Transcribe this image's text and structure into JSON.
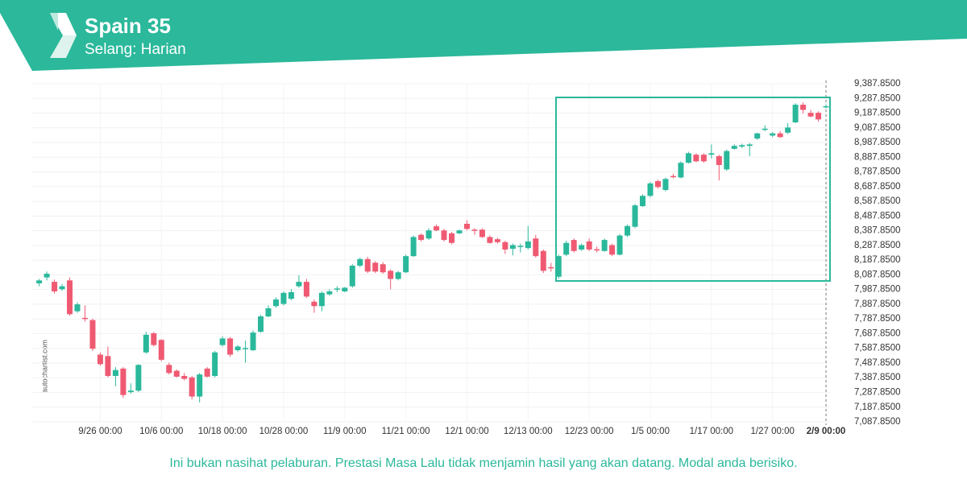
{
  "chart_data": {
    "type": "candlestick",
    "title": "Spain 35",
    "subtitle": "Selang: Harian",
    "source": "autochartist.com",
    "up_color": "#2ab89b",
    "down_color": "#ef5a72",
    "grid": true,
    "ylim": [
      7087.85,
      9387.85
    ],
    "yticks": [
      {
        "value": 7087.85,
        "label": "7,087.8500"
      },
      {
        "value": 7187.85,
        "label": "7,187.8500"
      },
      {
        "value": 7287.85,
        "label": "7,287.8500"
      },
      {
        "value": 7387.85,
        "label": "7,387.8500"
      },
      {
        "value": 7487.85,
        "label": "7,487.8500"
      },
      {
        "value": 7587.85,
        "label": "7,587.8500"
      },
      {
        "value": 7687.85,
        "label": "7,687.8500"
      },
      {
        "value": 7787.85,
        "label": "7,787.8500"
      },
      {
        "value": 7887.85,
        "label": "7,887.8500"
      },
      {
        "value": 7987.85,
        "label": "7,987.8500"
      },
      {
        "value": 8087.85,
        "label": "8,087.8500"
      },
      {
        "value": 8187.85,
        "label": "8,187.8500"
      },
      {
        "value": 8287.85,
        "label": "8,287.8500"
      },
      {
        "value": 8387.85,
        "label": "8,387.8500"
      },
      {
        "value": 8487.85,
        "label": "8,487.8500"
      },
      {
        "value": 8587.85,
        "label": "8,587.8500"
      },
      {
        "value": 8687.85,
        "label": "8,687.8500"
      },
      {
        "value": 8787.85,
        "label": "8,787.8500"
      },
      {
        "value": 8887.85,
        "label": "8,887.8500"
      },
      {
        "value": 8987.85,
        "label": "8,987.8500"
      },
      {
        "value": 9087.85,
        "label": "9,087.8500"
      },
      {
        "value": 9187.85,
        "label": "9,187.8500"
      },
      {
        "value": 9287.85,
        "label": "9,287.8500"
      },
      {
        "value": 9387.85,
        "label": "9,387.8500"
      }
    ],
    "categories": [
      null,
      null,
      null,
      null,
      null,
      null,
      null,
      null,
      "9/26 00:00",
      null,
      null,
      null,
      null,
      null,
      null,
      null,
      "10/6 00:00",
      null,
      null,
      null,
      null,
      null,
      null,
      null,
      "10/18 00:00",
      null,
      null,
      null,
      null,
      null,
      null,
      null,
      "10/28 00:00",
      null,
      null,
      null,
      null,
      null,
      null,
      null,
      "11/9 00:00",
      null,
      null,
      null,
      null,
      null,
      null,
      null,
      "11/21 00:00",
      null,
      null,
      null,
      null,
      null,
      null,
      null,
      "12/1 00:00",
      null,
      null,
      null,
      null,
      null,
      null,
      null,
      "12/13 00:00",
      null,
      null,
      null,
      null,
      null,
      null,
      null,
      "12/23 00:00",
      null,
      null,
      null,
      null,
      null,
      null,
      null,
      "1/5 00:00",
      null,
      null,
      null,
      null,
      null,
      null,
      null,
      "1/17 00:00",
      null,
      null,
      null,
      null,
      null,
      null,
      null,
      "1/27 00:00",
      null,
      null,
      null,
      null,
      null,
      null,
      "2/9 00:00"
    ],
    "series": [
      {
        "open": [
          8030,
          8070,
          8040,
          7990,
          8050,
          7840,
          7795,
          7780,
          7545,
          7535,
          7400,
          7450,
          7290,
          7300,
          7560,
          7690,
          7645,
          7475,
          7435,
          7400,
          7390,
          7260,
          7450,
          7400,
          7610,
          7655,
          7575,
          7585,
          7575,
          7700,
          7805,
          7875,
          7890,
          7925,
          8010,
          8040,
          7905,
          7875,
          7955,
          7990,
          7975,
          8010,
          8150,
          8195,
          8170,
          8160,
          8115,
          8060,
          8105,
          8215,
          8360,
          8335,
          8418,
          8390,
          8370,
          8370,
          8435,
          8395,
          8395,
          8345,
          8330,
          8310,
          8265,
          8280,
          8270,
          8335,
          8250,
          8140,
          8075,
          8225,
          8325,
          8260,
          8315,
          8262,
          8250,
          8290,
          8225,
          8355,
          8415,
          8555,
          8625,
          8725,
          8665,
          8760,
          8750,
          8850,
          8905,
          8905,
          8905,
          8895,
          8805,
          8945,
          8960,
          8965,
          9015,
          9075,
          9035,
          9050,
          9055,
          9125,
          9245,
          9190,
          9190,
          9228
        ],
        "high": [
          8060,
          8110,
          8055,
          8025,
          8070,
          7900,
          7880,
          7790,
          7560,
          7600,
          7460,
          7460,
          7350,
          7480,
          7700,
          7700,
          7650,
          7490,
          7445,
          7420,
          7400,
          7420,
          7460,
          7570,
          7670,
          7665,
          7610,
          7640,
          7710,
          7815,
          7880,
          7935,
          7975,
          7990,
          8085,
          8060,
          7920,
          7975,
          7990,
          8010,
          8005,
          8160,
          8205,
          8210,
          8180,
          8175,
          8125,
          8115,
          8225,
          8355,
          8370,
          8405,
          8430,
          8400,
          8380,
          8395,
          8460,
          8405,
          8405,
          8355,
          8340,
          8320,
          8300,
          8300,
          8420,
          8360,
          8260,
          8170,
          8225,
          8320,
          8335,
          8300,
          8335,
          8280,
          8335,
          8300,
          8365,
          8430,
          8570,
          8635,
          8720,
          8735,
          8750,
          8775,
          8860,
          8925,
          8915,
          8915,
          8975,
          8905,
          8940,
          8975,
          8980,
          8985,
          9055,
          9105,
          9060,
          9065,
          9120,
          9255,
          9260,
          9210,
          9200,
          9245
        ],
        "low": [
          8010,
          8050,
          7960,
          7980,
          7810,
          7830,
          7770,
          7570,
          7470,
          7390,
          7330,
          7250,
          7280,
          7290,
          7550,
          7600,
          7500,
          7410,
          7390,
          7370,
          7240,
          7220,
          7390,
          7390,
          7600,
          7530,
          7565,
          7490,
          7570,
          7695,
          7800,
          7865,
          7880,
          7915,
          8000,
          7930,
          7830,
          7840,
          7945,
          7970,
          7970,
          8000,
          8140,
          8100,
          8100,
          8095,
          7990,
          8050,
          8100,
          8210,
          8315,
          8325,
          8385,
          8315,
          8295,
          8365,
          8390,
          8360,
          8340,
          8300,
          8300,
          8230,
          8220,
          8240,
          8260,
          8205,
          8100,
          8110,
          8060,
          8215,
          8240,
          8250,
          8250,
          8240,
          8245,
          8215,
          8220,
          8345,
          8405,
          8550,
          8615,
          8675,
          8655,
          8745,
          8745,
          8845,
          8855,
          8850,
          8880,
          8730,
          8795,
          8940,
          8950,
          8895,
          9005,
          9065,
          9025,
          9020,
          9045,
          9120,
          9185,
          9160,
          9130,
          9220
        ],
        "close": [
          8050,
          8095,
          7975,
          8010,
          7820,
          7887,
          7790,
          7585,
          7480,
          7400,
          7440,
          7270,
          7300,
          7475,
          7680,
          7610,
          7510,
          7420,
          7395,
          7380,
          7260,
          7410,
          7395,
          7560,
          7655,
          7545,
          7600,
          7590,
          7695,
          7805,
          7860,
          7920,
          7965,
          7970,
          8040,
          7940,
          7875,
          7965,
          7975,
          7995,
          8000,
          8150,
          8195,
          8110,
          8110,
          8105,
          8060,
          8105,
          8215,
          8345,
          8325,
          8390,
          8390,
          8325,
          8305,
          8390,
          8400,
          8390,
          8345,
          8305,
          8310,
          8260,
          8290,
          8285,
          8315,
          8215,
          8115,
          8135,
          8215,
          8305,
          8250,
          8290,
          8260,
          8258,
          8325,
          8225,
          8355,
          8420,
          8560,
          8625,
          8710,
          8685,
          8740,
          8752,
          8850,
          8915,
          8860,
          8860,
          8915,
          8835,
          8930,
          8965,
          8970,
          8975,
          9050,
          9082,
          9050,
          9025,
          9090,
          9245,
          9210,
          9165,
          9145,
          9235
        ]
      }
    ]
  },
  "footer": {
    "disclaimer": "Ini bukan nasihat pelaburan. Prestasi Masa Lalu tidak menjamin hasil yang akan datang. Modal anda berisiko."
  }
}
